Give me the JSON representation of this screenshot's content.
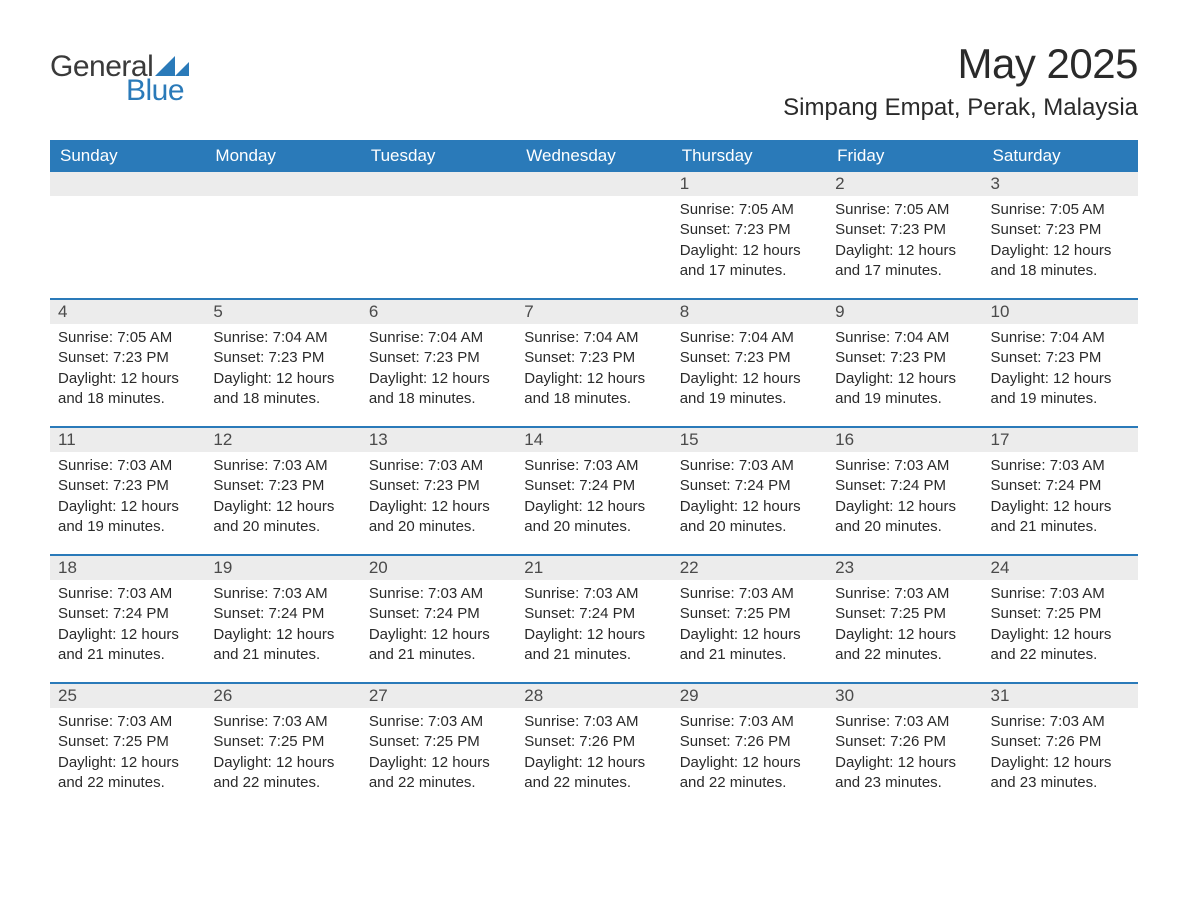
{
  "logo": {
    "text1": "General",
    "text2": "Blue"
  },
  "title": "May 2025",
  "location": "Simpang Empat, Perak, Malaysia",
  "colors": {
    "header_bg": "#2a7ab9",
    "header_text": "#ffffff",
    "daynum_bg": "#ececec",
    "daynum_text": "#4a4a4a",
    "body_text": "#2a2a2a",
    "border": "#2a7ab9",
    "page_bg": "#ffffff"
  },
  "typography": {
    "title_fontsize": 42,
    "location_fontsize": 24,
    "dow_fontsize": 17,
    "daynum_fontsize": 17,
    "body_fontsize": 15
  },
  "days_of_week": [
    "Sunday",
    "Monday",
    "Tuesday",
    "Wednesday",
    "Thursday",
    "Friday",
    "Saturday"
  ],
  "weeks": [
    [
      {
        "blank": true
      },
      {
        "blank": true
      },
      {
        "blank": true
      },
      {
        "blank": true
      },
      {
        "num": "1",
        "sunrise": "Sunrise: 7:05 AM",
        "sunset": "Sunset: 7:23 PM",
        "daylight": "Daylight: 12 hours and 17 minutes."
      },
      {
        "num": "2",
        "sunrise": "Sunrise: 7:05 AM",
        "sunset": "Sunset: 7:23 PM",
        "daylight": "Daylight: 12 hours and 17 minutes."
      },
      {
        "num": "3",
        "sunrise": "Sunrise: 7:05 AM",
        "sunset": "Sunset: 7:23 PM",
        "daylight": "Daylight: 12 hours and 18 minutes."
      }
    ],
    [
      {
        "num": "4",
        "sunrise": "Sunrise: 7:05 AM",
        "sunset": "Sunset: 7:23 PM",
        "daylight": "Daylight: 12 hours and 18 minutes."
      },
      {
        "num": "5",
        "sunrise": "Sunrise: 7:04 AM",
        "sunset": "Sunset: 7:23 PM",
        "daylight": "Daylight: 12 hours and 18 minutes."
      },
      {
        "num": "6",
        "sunrise": "Sunrise: 7:04 AM",
        "sunset": "Sunset: 7:23 PM",
        "daylight": "Daylight: 12 hours and 18 minutes."
      },
      {
        "num": "7",
        "sunrise": "Sunrise: 7:04 AM",
        "sunset": "Sunset: 7:23 PM",
        "daylight": "Daylight: 12 hours and 18 minutes."
      },
      {
        "num": "8",
        "sunrise": "Sunrise: 7:04 AM",
        "sunset": "Sunset: 7:23 PM",
        "daylight": "Daylight: 12 hours and 19 minutes."
      },
      {
        "num": "9",
        "sunrise": "Sunrise: 7:04 AM",
        "sunset": "Sunset: 7:23 PM",
        "daylight": "Daylight: 12 hours and 19 minutes."
      },
      {
        "num": "10",
        "sunrise": "Sunrise: 7:04 AM",
        "sunset": "Sunset: 7:23 PM",
        "daylight": "Daylight: 12 hours and 19 minutes."
      }
    ],
    [
      {
        "num": "11",
        "sunrise": "Sunrise: 7:03 AM",
        "sunset": "Sunset: 7:23 PM",
        "daylight": "Daylight: 12 hours and 19 minutes."
      },
      {
        "num": "12",
        "sunrise": "Sunrise: 7:03 AM",
        "sunset": "Sunset: 7:23 PM",
        "daylight": "Daylight: 12 hours and 20 minutes."
      },
      {
        "num": "13",
        "sunrise": "Sunrise: 7:03 AM",
        "sunset": "Sunset: 7:23 PM",
        "daylight": "Daylight: 12 hours and 20 minutes."
      },
      {
        "num": "14",
        "sunrise": "Sunrise: 7:03 AM",
        "sunset": "Sunset: 7:24 PM",
        "daylight": "Daylight: 12 hours and 20 minutes."
      },
      {
        "num": "15",
        "sunrise": "Sunrise: 7:03 AM",
        "sunset": "Sunset: 7:24 PM",
        "daylight": "Daylight: 12 hours and 20 minutes."
      },
      {
        "num": "16",
        "sunrise": "Sunrise: 7:03 AM",
        "sunset": "Sunset: 7:24 PM",
        "daylight": "Daylight: 12 hours and 20 minutes."
      },
      {
        "num": "17",
        "sunrise": "Sunrise: 7:03 AM",
        "sunset": "Sunset: 7:24 PM",
        "daylight": "Daylight: 12 hours and 21 minutes."
      }
    ],
    [
      {
        "num": "18",
        "sunrise": "Sunrise: 7:03 AM",
        "sunset": "Sunset: 7:24 PM",
        "daylight": "Daylight: 12 hours and 21 minutes."
      },
      {
        "num": "19",
        "sunrise": "Sunrise: 7:03 AM",
        "sunset": "Sunset: 7:24 PM",
        "daylight": "Daylight: 12 hours and 21 minutes."
      },
      {
        "num": "20",
        "sunrise": "Sunrise: 7:03 AM",
        "sunset": "Sunset: 7:24 PM",
        "daylight": "Daylight: 12 hours and 21 minutes."
      },
      {
        "num": "21",
        "sunrise": "Sunrise: 7:03 AM",
        "sunset": "Sunset: 7:24 PM",
        "daylight": "Daylight: 12 hours and 21 minutes."
      },
      {
        "num": "22",
        "sunrise": "Sunrise: 7:03 AM",
        "sunset": "Sunset: 7:25 PM",
        "daylight": "Daylight: 12 hours and 21 minutes."
      },
      {
        "num": "23",
        "sunrise": "Sunrise: 7:03 AM",
        "sunset": "Sunset: 7:25 PM",
        "daylight": "Daylight: 12 hours and 22 minutes."
      },
      {
        "num": "24",
        "sunrise": "Sunrise: 7:03 AM",
        "sunset": "Sunset: 7:25 PM",
        "daylight": "Daylight: 12 hours and 22 minutes."
      }
    ],
    [
      {
        "num": "25",
        "sunrise": "Sunrise: 7:03 AM",
        "sunset": "Sunset: 7:25 PM",
        "daylight": "Daylight: 12 hours and 22 minutes."
      },
      {
        "num": "26",
        "sunrise": "Sunrise: 7:03 AM",
        "sunset": "Sunset: 7:25 PM",
        "daylight": "Daylight: 12 hours and 22 minutes."
      },
      {
        "num": "27",
        "sunrise": "Sunrise: 7:03 AM",
        "sunset": "Sunset: 7:25 PM",
        "daylight": "Daylight: 12 hours and 22 minutes."
      },
      {
        "num": "28",
        "sunrise": "Sunrise: 7:03 AM",
        "sunset": "Sunset: 7:26 PM",
        "daylight": "Daylight: 12 hours and 22 minutes."
      },
      {
        "num": "29",
        "sunrise": "Sunrise: 7:03 AM",
        "sunset": "Sunset: 7:26 PM",
        "daylight": "Daylight: 12 hours and 22 minutes."
      },
      {
        "num": "30",
        "sunrise": "Sunrise: 7:03 AM",
        "sunset": "Sunset: 7:26 PM",
        "daylight": "Daylight: 12 hours and 23 minutes."
      },
      {
        "num": "31",
        "sunrise": "Sunrise: 7:03 AM",
        "sunset": "Sunset: 7:26 PM",
        "daylight": "Daylight: 12 hours and 23 minutes."
      }
    ]
  ]
}
